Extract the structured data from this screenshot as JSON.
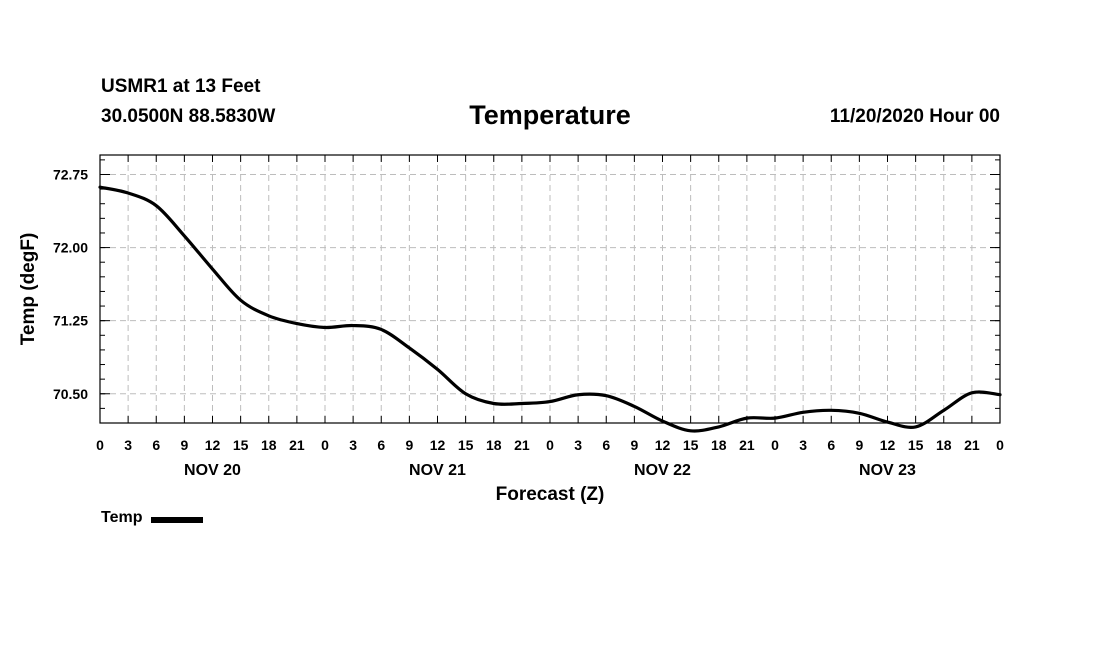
{
  "header": {
    "station": "USMR1 at 13 Feet",
    "coords": "30.0500N 88.5830W",
    "title": "Temperature",
    "datetime": "11/20/2020 Hour 00"
  },
  "legend": {
    "label": "Temp"
  },
  "chart_data": {
    "type": "line",
    "title": "Temperature",
    "xlabel": "Forecast (Z)",
    "ylabel": "Temp (degF)",
    "xlim": [
      0,
      96
    ],
    "ylim": [
      70.2,
      72.95
    ],
    "yticks": [
      72.75,
      72.0,
      71.25,
      70.5
    ],
    "ytick_labels": [
      "72.75",
      "72.00",
      "71.25",
      "70.50"
    ],
    "xtick_hours": [
      0,
      3,
      6,
      9,
      12,
      15,
      18,
      21,
      24,
      27,
      30,
      33,
      36,
      39,
      42,
      45,
      48,
      51,
      54,
      57,
      60,
      63,
      66,
      69,
      72,
      75,
      78,
      81,
      84,
      87,
      90,
      93,
      96
    ],
    "xtick_labels": [
      "0",
      "3",
      "6",
      "9",
      "12",
      "15",
      "18",
      "21",
      "0",
      "3",
      "6",
      "9",
      "12",
      "15",
      "18",
      "21",
      "0",
      "3",
      "6",
      "9",
      "12",
      "15",
      "18",
      "21",
      "0",
      "3",
      "6",
      "9",
      "12",
      "15",
      "18",
      "21",
      "0"
    ],
    "day_labels": [
      {
        "hour": 12,
        "label": "NOV 20"
      },
      {
        "hour": 36,
        "label": "NOV 21"
      },
      {
        "hour": 60,
        "label": "NOV 22"
      },
      {
        "hour": 84,
        "label": "NOV 23"
      }
    ],
    "grid": true,
    "legend_position": "bottom-left",
    "series": [
      {
        "name": "Temp",
        "color": "#000000",
        "x": [
          0,
          3,
          6,
          9,
          12,
          15,
          18,
          21,
          24,
          27,
          30,
          33,
          36,
          39,
          42,
          45,
          48,
          51,
          54,
          57,
          60,
          63,
          66,
          69,
          72,
          75,
          78,
          81,
          84,
          87,
          90,
          93,
          96
        ],
        "values": [
          72.62,
          72.56,
          72.43,
          72.12,
          71.78,
          71.46,
          71.3,
          71.22,
          71.18,
          71.2,
          71.16,
          70.97,
          70.75,
          70.5,
          70.4,
          70.4,
          70.42,
          70.49,
          70.48,
          70.37,
          70.22,
          70.12,
          70.16,
          70.25,
          70.25,
          70.31,
          70.33,
          70.3,
          70.21,
          70.16,
          70.33,
          70.51,
          70.49
        ]
      }
    ]
  }
}
